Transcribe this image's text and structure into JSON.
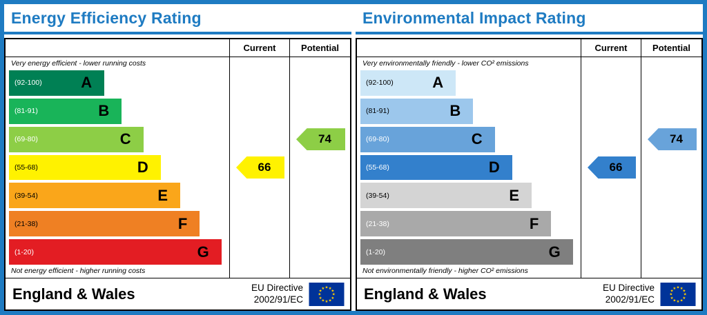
{
  "colors": {
    "accent": "#1e7bc2",
    "table_border": "#000000",
    "flag_bg": "#003399",
    "flag_stars": "#ffcc00"
  },
  "chart_data": [
    {
      "type": "bar",
      "title": "Energy Efficiency Rating",
      "categories": [
        "A (92-100)",
        "B (81-91)",
        "C (69-80)",
        "D (55-68)",
        "E (39-54)",
        "F (21-38)",
        "G (1-20)"
      ],
      "values": [
        44,
        52,
        62,
        70,
        79,
        88,
        98
      ],
      "current": 66,
      "current_band": "D",
      "potential": 74,
      "potential_band": "C",
      "ylabel": "",
      "xlabel": "",
      "legend": [
        "Current",
        "Potential"
      ]
    },
    {
      "type": "bar",
      "title": "Environmental Impact Rating",
      "categories": [
        "A (92-100)",
        "B (81-91)",
        "C (69-80)",
        "D (55-68)",
        "E (39-54)",
        "F (21-38)",
        "G (1-20)"
      ],
      "values": [
        44,
        52,
        62,
        70,
        79,
        88,
        98
      ],
      "current": 66,
      "current_band": "D",
      "potential": 74,
      "potential_band": "C",
      "ylabel": "",
      "xlabel": "",
      "legend": [
        "Current",
        "Potential"
      ]
    }
  ],
  "panels": [
    {
      "title": "Energy Efficiency Rating",
      "columns": {
        "current": "Current",
        "potential": "Potential"
      },
      "top_caption": "Very energy efficient - lower running costs",
      "bottom_caption": "Not energy efficient - higher running costs",
      "bands": [
        {
          "range": "(92-100)",
          "letter": "A",
          "color": "#008054",
          "range_color": "#ffffff",
          "width_pct": 44
        },
        {
          "range": "(81-91)",
          "letter": "B",
          "color": "#19b459",
          "range_color": "#ffffff",
          "width_pct": 52
        },
        {
          "range": "(69-80)",
          "letter": "C",
          "color": "#8dce46",
          "range_color": "#ffffff",
          "width_pct": 62
        },
        {
          "range": "(55-68)",
          "letter": "D",
          "color": "#fff200",
          "range_color": "#000000",
          "width_pct": 70
        },
        {
          "range": "(39-54)",
          "letter": "E",
          "color": "#faa61a",
          "range_color": "#000000",
          "width_pct": 79
        },
        {
          "range": "(21-38)",
          "letter": "F",
          "color": "#ef8023",
          "range_color": "#000000",
          "width_pct": 88
        },
        {
          "range": "(1-20)",
          "letter": "G",
          "color": "#e31d23",
          "range_color": "#ffffff",
          "width_pct": 98
        }
      ],
      "current": {
        "value": "66",
        "band_index": 3,
        "color": "#fff200"
      },
      "potential": {
        "value": "74",
        "band_index": 2,
        "color": "#8dce46"
      },
      "footer": {
        "region": "England & Wales",
        "directive_line1": "EU Directive",
        "directive_line2": "2002/91/EC"
      }
    },
    {
      "title": "Environmental Impact Rating",
      "columns": {
        "current": "Current",
        "potential": "Potential"
      },
      "top_caption": "Very environmentally friendly - lower CO² emissions",
      "bottom_caption": "Not environmentally friendly - higher CO² emissions",
      "bands": [
        {
          "range": "(92-100)",
          "letter": "A",
          "color": "#cde7f7",
          "range_color": "#000000",
          "width_pct": 44
        },
        {
          "range": "(81-91)",
          "letter": "B",
          "color": "#9cc7ec",
          "range_color": "#000000",
          "width_pct": 52
        },
        {
          "range": "(69-80)",
          "letter": "C",
          "color": "#68a3da",
          "range_color": "#ffffff",
          "width_pct": 62
        },
        {
          "range": "(55-68)",
          "letter": "D",
          "color": "#3380cc",
          "range_color": "#ffffff",
          "width_pct": 70
        },
        {
          "range": "(39-54)",
          "letter": "E",
          "color": "#d4d4d4",
          "range_color": "#000000",
          "width_pct": 79
        },
        {
          "range": "(21-38)",
          "letter": "F",
          "color": "#a9a9a9",
          "range_color": "#ffffff",
          "width_pct": 88
        },
        {
          "range": "(1-20)",
          "letter": "G",
          "color": "#7f7f7f",
          "range_color": "#ffffff",
          "width_pct": 98
        }
      ],
      "current": {
        "value": "66",
        "band_index": 3,
        "color": "#3380cc"
      },
      "potential": {
        "value": "74",
        "band_index": 2,
        "color": "#68a3da"
      },
      "footer": {
        "region": "England & Wales",
        "directive_line1": "EU Directive",
        "directive_line2": "2002/91/EC"
      }
    }
  ]
}
